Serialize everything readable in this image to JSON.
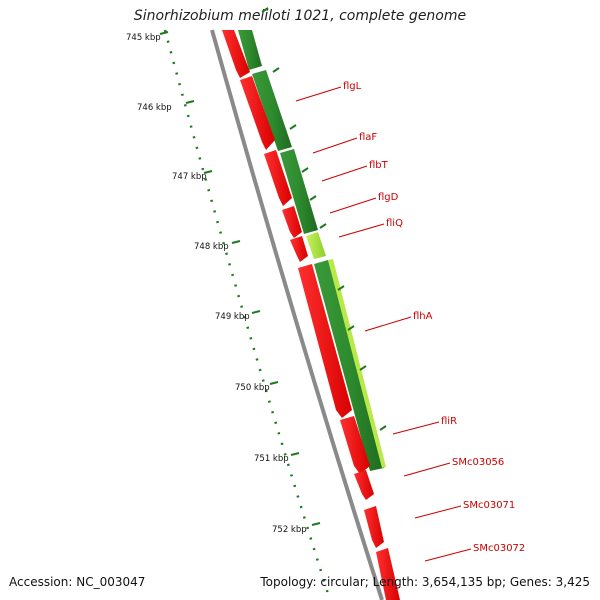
{
  "header": {
    "organism": "Sinorhizobium meliloti",
    "strain_suffix": " 1021, complete genome"
  },
  "footer": {
    "accession": "Accession: NC_003047",
    "topology": "Topology: circular; Length: 3,654,135 bp; Genes: 3,425"
  },
  "colors": {
    "backbone": "#8a8a8a",
    "reverse_gene": "#ff0000",
    "reverse_gene_shade": "#b80000",
    "forward_track": "#2e8b2e",
    "forward_track_light": "#9acd32",
    "tick": "#1f7a1f",
    "gene_label": "#cc0000"
  },
  "ticks": [
    {
      "label": "745 kbp"
    },
    {
      "label": "746 kbp"
    },
    {
      "label": "747 kbp"
    },
    {
      "label": "748 kbp"
    },
    {
      "label": "749 kbp"
    },
    {
      "label": "750 kbp"
    },
    {
      "label": "751 kbp"
    },
    {
      "label": "752 kbp"
    }
  ],
  "gene_labels": [
    {
      "name": "flgL"
    },
    {
      "name": "flaF"
    },
    {
      "name": "flbT"
    },
    {
      "name": "flgD"
    },
    {
      "name": "fliQ"
    },
    {
      "name": "flhA"
    },
    {
      "name": "fliR"
    },
    {
      "name": "SMc03056"
    },
    {
      "name": "SMc03071"
    },
    {
      "name": "SMc03072"
    }
  ]
}
